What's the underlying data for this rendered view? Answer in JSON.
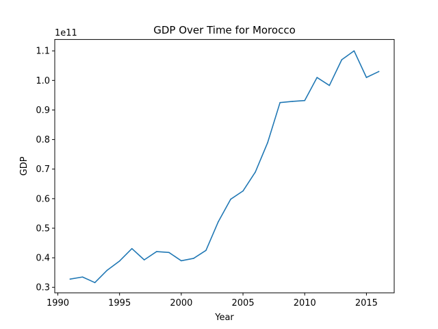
{
  "chart_data": {
    "type": "line",
    "title": "GDP Over Time for Morocco",
    "xlabel": "Year",
    "ylabel": "GDP",
    "y_offset_label": "1e11",
    "xlim": [
      1989.75,
      2017.25
    ],
    "ylim": [
      0.2815,
      1.1385
    ],
    "x_ticks": [
      1990,
      1995,
      2000,
      2005,
      2010,
      2015
    ],
    "y_ticks": [
      0.3,
      0.4,
      0.5,
      0.6,
      0.7,
      0.8,
      0.9,
      1.0,
      1.1
    ],
    "x_tick_labels": [
      "1990",
      "1995",
      "2000",
      "2005",
      "2010",
      "2015"
    ],
    "y_tick_labels": [
      "0.3",
      "0.4",
      "0.5",
      "0.6",
      "0.7",
      "0.8",
      "0.9",
      "1.0",
      "1.1"
    ],
    "grid": false,
    "line_color": "#1f77b4",
    "series": [
      {
        "x": [
          1991,
          1992,
          1993,
          1994,
          1995,
          1996,
          1997,
          1998,
          1999,
          2000,
          2001,
          2002,
          2003,
          2004,
          2005,
          2006,
          2007,
          2008,
          2009,
          2010,
          2011,
          2012,
          2013,
          2014,
          2015,
          2016
        ],
        "values": [
          0.328,
          0.335,
          0.316,
          0.358,
          0.389,
          0.431,
          0.393,
          0.421,
          0.418,
          0.39,
          0.398,
          0.425,
          0.522,
          0.598,
          0.626,
          0.69,
          0.79,
          0.925,
          0.929,
          0.932,
          1.01,
          0.983,
          1.07,
          1.1,
          1.01,
          1.03
        ]
      }
    ]
  }
}
